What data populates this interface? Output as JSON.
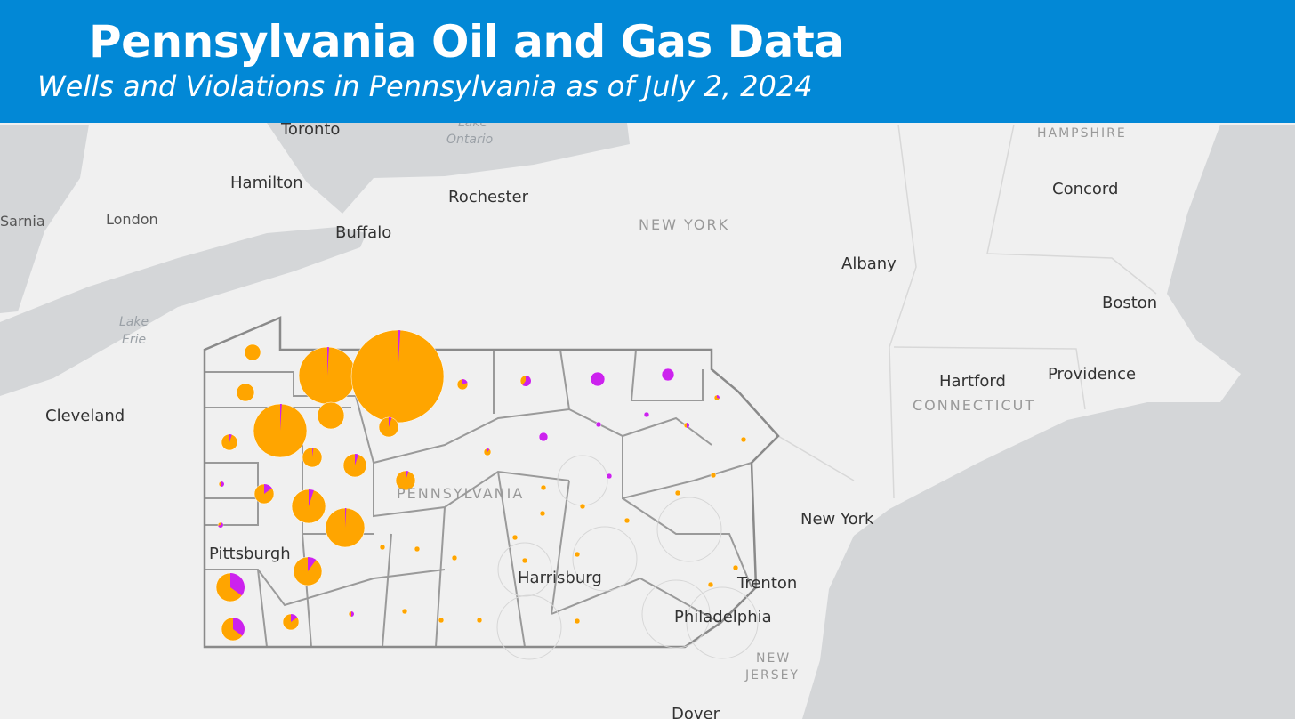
{
  "header": {
    "title": "Pennsylvania Oil and Gas Data",
    "subtitle": "Wells and Violations in Pennsylvania as of July 2, 2024"
  },
  "map": {
    "cities": [
      "Toronto",
      "Hamilton",
      "Rochester",
      "Sarnia",
      "London",
      "Buffalo",
      "Cleveland",
      "Pittsburgh",
      "Harrisburg",
      "Philadelphia",
      "Trenton",
      "New York",
      "Albany",
      "Concord",
      "Boston",
      "Hartford",
      "Providence",
      "Dover"
    ],
    "regions": [
      "NEW YORK",
      "PENNSYLVANIA",
      "CONNECTICUT",
      "HAMPSHIRE",
      "NEW",
      "JERSEY"
    ],
    "water": [
      "Lake",
      "Ontario",
      "Lake",
      "Erie"
    ]
  }
}
